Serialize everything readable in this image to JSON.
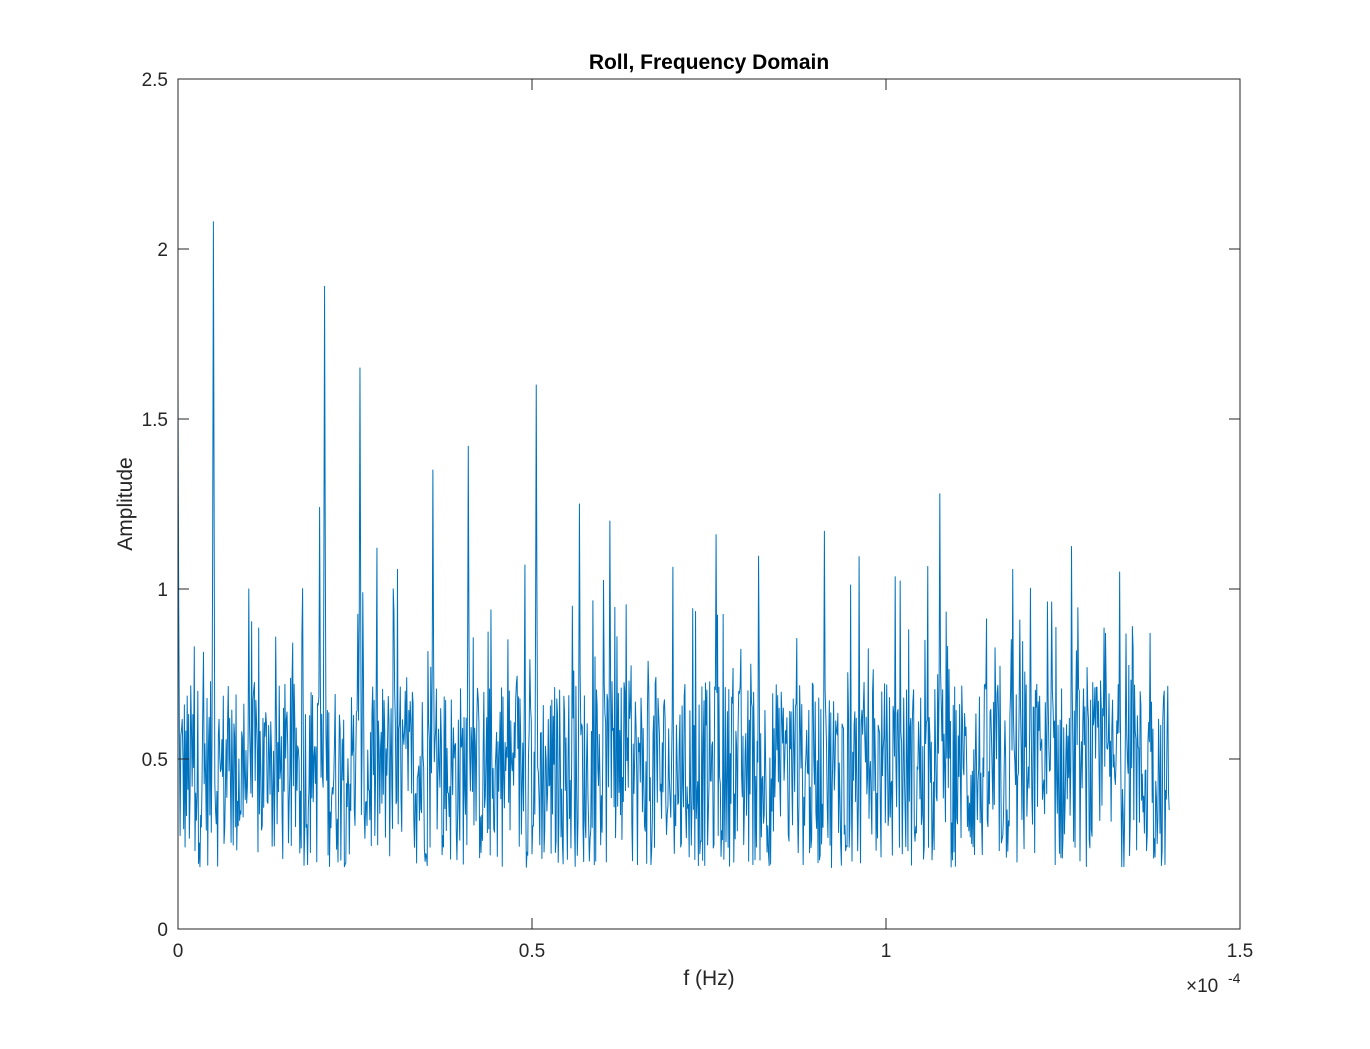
{
  "chart_data": {
    "type": "line",
    "title": "Roll, Frequency Domain",
    "xlabel": "f (Hz)",
    "ylabel": "Amplitude",
    "x_exponent_label": "×10",
    "x_exponent_power": "-4",
    "xlim": [
      0,
      1.5
    ],
    "ylim": [
      0,
      2.5
    ],
    "x_scale_factor": 0.0001,
    "xticks": [
      0,
      0.5,
      1,
      1.5
    ],
    "xtick_labels": [
      "0",
      "0.5",
      "1",
      "1.5"
    ],
    "yticks": [
      0,
      0.5,
      1,
      1.5,
      2,
      2.5
    ],
    "ytick_labels": [
      "0",
      "0.5",
      "1",
      "1.5",
      "2",
      "2.5"
    ],
    "grid": false,
    "line_color": "#0072BD",
    "series": [
      {
        "x_range": [
          0,
          1.4
        ],
        "peaks": [
          {
            "x": 0.0,
            "y": 1.6
          },
          {
            "x": 0.05,
            "y": 2.08
          },
          {
            "x": 0.1,
            "y": 1.0
          },
          {
            "x": 0.2,
            "y": 1.24
          },
          {
            "x": 0.207,
            "y": 1.89
          },
          {
            "x": 0.257,
            "y": 1.65
          },
          {
            "x": 0.36,
            "y": 1.35
          },
          {
            "x": 0.41,
            "y": 1.42
          },
          {
            "x": 0.506,
            "y": 1.6
          },
          {
            "x": 0.567,
            "y": 1.25
          },
          {
            "x": 0.61,
            "y": 1.2
          },
          {
            "x": 0.76,
            "y": 1.16
          },
          {
            "x": 0.913,
            "y": 1.17
          },
          {
            "x": 1.076,
            "y": 1.28
          },
          {
            "x": 1.31,
            "y": 0.87
          },
          {
            "x": 1.33,
            "y": 1.05
          },
          {
            "x": 1.373,
            "y": 0.87
          }
        ],
        "baseline_mean": 0.45,
        "min_value": 0.01,
        "end_value": 0.35
      }
    ]
  }
}
